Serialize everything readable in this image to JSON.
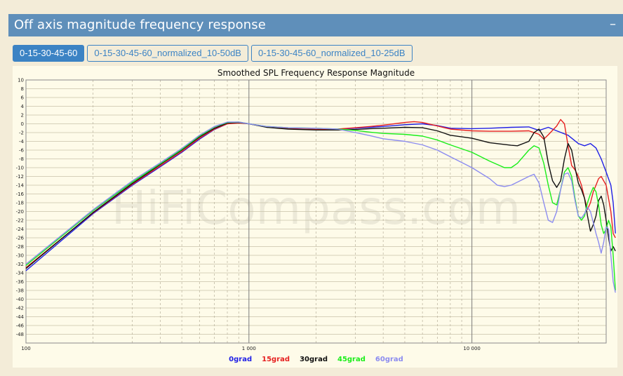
{
  "header": {
    "title": "Off axis magnitude frequency response",
    "collapse_symbol": "–"
  },
  "tabs": [
    {
      "label": "0-15-30-45-60",
      "active": true
    },
    {
      "label": "0-15-30-45-60_normalized_10-50dB",
      "active": false
    },
    {
      "label": "0-15-30-45-60_normalized_10-25dB",
      "active": false
    }
  ],
  "colors": {
    "header_bg": "#5f8fba",
    "tab_accent": "#3c83c4",
    "plot_bg": "#fefbe9"
  },
  "chart_data": {
    "type": "line",
    "title": "Smoothed SPL Frequency Response Magnitude",
    "watermark": "HiFiCompass.com",
    "x_scale": "log",
    "xlim": [
      100,
      40000
    ],
    "ylim": [
      -50,
      10
    ],
    "x_tick_labels": [
      {
        "value": 100,
        "label": "100"
      },
      {
        "value": 1000,
        "label": "1 000"
      },
      {
        "value": 10000,
        "label": "10 000"
      }
    ],
    "y_ticks": [
      10,
      8,
      6,
      4,
      2,
      0,
      -2,
      -4,
      -6,
      -8,
      -10,
      -12,
      -14,
      -16,
      -18,
      -20,
      -22,
      -24,
      -26,
      -28,
      -30,
      -32,
      -34,
      -36,
      -38,
      -40,
      -42,
      -44,
      -46,
      -48
    ],
    "grid": true,
    "legend_position": "bottom-center",
    "series": [
      {
        "name": "0grad",
        "color": "#1f1fe6",
        "points": [
          [
            100,
            -33.5
          ],
          [
            200,
            -20.5
          ],
          [
            300,
            -14
          ],
          [
            400,
            -9.8
          ],
          [
            500,
            -6.5
          ],
          [
            600,
            -3.5
          ],
          [
            700,
            -1.3
          ],
          [
            800,
            0
          ],
          [
            900,
            0.3
          ],
          [
            1000,
            0
          ],
          [
            1200,
            -0.7
          ],
          [
            1500,
            -1.1
          ],
          [
            2000,
            -1.3
          ],
          [
            2500,
            -1.2
          ],
          [
            3000,
            -1
          ],
          [
            3500,
            -0.8
          ],
          [
            4000,
            -0.6
          ],
          [
            5000,
            -0.2
          ],
          [
            6000,
            0
          ],
          [
            7000,
            -0.4
          ],
          [
            8000,
            -1
          ],
          [
            10000,
            -1.1
          ],
          [
            12000,
            -1
          ],
          [
            15000,
            -0.8
          ],
          [
            18000,
            -0.7
          ],
          [
            20000,
            -1.5
          ],
          [
            22000,
            -0.8
          ],
          [
            24000,
            -1.6
          ],
          [
            27000,
            -2.6
          ],
          [
            30000,
            -4.5
          ],
          [
            32000,
            -5
          ],
          [
            34000,
            -4.5
          ],
          [
            36000,
            -5.5
          ],
          [
            38000,
            -8
          ],
          [
            40000,
            -11
          ],
          [
            42000,
            -14
          ],
          [
            43000,
            -18
          ],
          [
            44000,
            -25
          ]
        ]
      },
      {
        "name": "15grad",
        "color": "#e62020",
        "points": [
          [
            100,
            -32.8
          ],
          [
            200,
            -20.3
          ],
          [
            300,
            -13.8
          ],
          [
            400,
            -9.6
          ],
          [
            500,
            -6.3
          ],
          [
            600,
            -3.3
          ],
          [
            700,
            -1.2
          ],
          [
            800,
            0
          ],
          [
            900,
            0.2
          ],
          [
            1000,
            0
          ],
          [
            1200,
            -0.7
          ],
          [
            1500,
            -1.1
          ],
          [
            2000,
            -1.3
          ],
          [
            2500,
            -1.2
          ],
          [
            3000,
            -0.9
          ],
          [
            3500,
            -0.6
          ],
          [
            4000,
            -0.3
          ],
          [
            5000,
            0.3
          ],
          [
            5500,
            0.5
          ],
          [
            6000,
            0.3
          ],
          [
            7000,
            -0.5
          ],
          [
            8000,
            -1.2
          ],
          [
            10000,
            -1.6
          ],
          [
            12000,
            -1.7
          ],
          [
            15000,
            -1.7
          ],
          [
            18000,
            -1.6
          ],
          [
            20000,
            -2.4
          ],
          [
            21000,
            -3.5
          ],
          [
            22000,
            -2.5
          ],
          [
            24000,
            -0.5
          ],
          [
            25000,
            1
          ],
          [
            26000,
            0
          ],
          [
            27000,
            -5
          ],
          [
            28000,
            -9.5
          ],
          [
            29000,
            -10.5
          ],
          [
            30000,
            -12
          ],
          [
            31000,
            -14
          ],
          [
            32000,
            -17
          ],
          [
            33000,
            -19.5
          ],
          [
            34000,
            -18
          ],
          [
            35000,
            -15.5
          ],
          [
            36000,
            -14
          ],
          [
            37000,
            -12.5
          ],
          [
            38000,
            -12
          ],
          [
            40000,
            -14
          ],
          [
            42000,
            -20
          ],
          [
            43000,
            -25
          ],
          [
            44000,
            -26
          ]
        ]
      },
      {
        "name": "30grad",
        "color": "#111111",
        "points": [
          [
            100,
            -33
          ],
          [
            200,
            -20.2
          ],
          [
            300,
            -13.6
          ],
          [
            400,
            -9.3
          ],
          [
            500,
            -6
          ],
          [
            600,
            -3
          ],
          [
            700,
            -1
          ],
          [
            800,
            0.2
          ],
          [
            900,
            0.3
          ],
          [
            1000,
            0
          ],
          [
            1200,
            -0.8
          ],
          [
            1500,
            -1.2
          ],
          [
            2000,
            -1.4
          ],
          [
            2500,
            -1.4
          ],
          [
            3000,
            -1.3
          ],
          [
            3500,
            -1.1
          ],
          [
            4000,
            -1
          ],
          [
            5000,
            -0.8
          ],
          [
            6000,
            -0.9
          ],
          [
            7000,
            -1.6
          ],
          [
            8000,
            -2.6
          ],
          [
            10000,
            -3.3
          ],
          [
            12000,
            -4.3
          ],
          [
            15000,
            -4.9
          ],
          [
            16000,
            -5
          ],
          [
            18000,
            -4
          ],
          [
            19000,
            -2
          ],
          [
            20000,
            -1.2
          ],
          [
            21000,
            -3
          ],
          [
            22000,
            -9
          ],
          [
            23000,
            -13
          ],
          [
            24000,
            -14.5
          ],
          [
            25000,
            -13
          ],
          [
            26000,
            -8
          ],
          [
            27000,
            -4.5
          ],
          [
            28000,
            -6
          ],
          [
            29000,
            -10
          ],
          [
            30000,
            -13.5
          ],
          [
            31000,
            -15
          ],
          [
            32000,
            -17
          ],
          [
            33000,
            -21
          ],
          [
            34000,
            -24.5
          ],
          [
            35000,
            -23
          ],
          [
            36000,
            -21
          ],
          [
            37000,
            -17.5
          ],
          [
            38000,
            -16.5
          ],
          [
            39000,
            -18.5
          ],
          [
            40000,
            -22
          ],
          [
            41000,
            -26
          ],
          [
            42000,
            -29
          ],
          [
            43000,
            -28
          ],
          [
            44000,
            -29
          ]
        ]
      },
      {
        "name": "45grad",
        "color": "#19ee19",
        "points": [
          [
            100,
            -32.3
          ],
          [
            200,
            -19.8
          ],
          [
            300,
            -13.3
          ],
          [
            400,
            -9.1
          ],
          [
            500,
            -5.8
          ],
          [
            600,
            -2.8
          ],
          [
            700,
            -0.7
          ],
          [
            800,
            0.3
          ],
          [
            900,
            0.4
          ],
          [
            1000,
            0
          ],
          [
            1200,
            -0.6
          ],
          [
            1500,
            -0.9
          ],
          [
            2000,
            -1
          ],
          [
            2500,
            -1.2
          ],
          [
            3000,
            -1.5
          ],
          [
            3500,
            -1.9
          ],
          [
            4000,
            -2.2
          ],
          [
            5000,
            -2.4
          ],
          [
            6000,
            -2.8
          ],
          [
            7000,
            -3.7
          ],
          [
            8000,
            -4.8
          ],
          [
            10000,
            -6.5
          ],
          [
            12000,
            -8.5
          ],
          [
            14000,
            -10
          ],
          [
            15000,
            -10
          ],
          [
            16000,
            -9
          ],
          [
            18000,
            -6
          ],
          [
            19000,
            -5
          ],
          [
            20000,
            -5.5
          ],
          [
            21000,
            -9
          ],
          [
            22000,
            -14
          ],
          [
            23000,
            -18
          ],
          [
            24000,
            -18.5
          ],
          [
            25000,
            -15
          ],
          [
            26000,
            -11
          ],
          [
            27000,
            -10
          ],
          [
            28000,
            -12
          ],
          [
            29000,
            -17
          ],
          [
            30000,
            -21
          ],
          [
            31000,
            -22
          ],
          [
            32000,
            -21
          ],
          [
            33000,
            -18
          ],
          [
            34000,
            -16
          ],
          [
            35000,
            -14.5
          ],
          [
            36000,
            -15.5
          ],
          [
            37000,
            -18.5
          ],
          [
            38000,
            -23
          ],
          [
            39000,
            -25
          ],
          [
            40000,
            -24
          ],
          [
            41000,
            -22
          ],
          [
            42000,
            -23.5
          ],
          [
            43000,
            -30
          ],
          [
            44000,
            -38
          ]
        ]
      },
      {
        "name": "60grad",
        "color": "#8c8cf0",
        "points": [
          [
            100,
            -32
          ],
          [
            200,
            -19.6
          ],
          [
            300,
            -13
          ],
          [
            400,
            -8.9
          ],
          [
            500,
            -5.6
          ],
          [
            600,
            -2.6
          ],
          [
            700,
            -0.6
          ],
          [
            800,
            0.4
          ],
          [
            900,
            0.4
          ],
          [
            1000,
            0
          ],
          [
            1200,
            -0.6
          ],
          [
            1500,
            -0.9
          ],
          [
            2000,
            -1
          ],
          [
            2500,
            -1.2
          ],
          [
            3000,
            -2
          ],
          [
            3500,
            -2.7
          ],
          [
            4000,
            -3.4
          ],
          [
            5000,
            -4
          ],
          [
            6000,
            -4.8
          ],
          [
            7000,
            -6
          ],
          [
            8000,
            -7.5
          ],
          [
            10000,
            -10
          ],
          [
            12000,
            -12.5
          ],
          [
            13000,
            -14
          ],
          [
            14000,
            -14.3
          ],
          [
            15000,
            -14
          ],
          [
            16000,
            -13.3
          ],
          [
            18000,
            -12
          ],
          [
            19000,
            -11.5
          ],
          [
            20000,
            -13.5
          ],
          [
            21000,
            -18
          ],
          [
            22000,
            -22
          ],
          [
            23000,
            -22.5
          ],
          [
            24000,
            -20
          ],
          [
            25000,
            -15
          ],
          [
            26000,
            -11.5
          ],
          [
            27000,
            -11.2
          ],
          [
            28000,
            -13
          ],
          [
            29000,
            -17.5
          ],
          [
            30000,
            -21
          ],
          [
            31000,
            -21.5
          ],
          [
            32000,
            -20.5
          ],
          [
            33000,
            -19
          ],
          [
            34000,
            -20
          ],
          [
            35000,
            -22.5
          ],
          [
            36000,
            -25
          ],
          [
            37000,
            -27
          ],
          [
            38000,
            -29.5
          ],
          [
            39000,
            -27
          ],
          [
            40000,
            -23.5
          ],
          [
            41000,
            -24
          ],
          [
            42000,
            -30
          ],
          [
            43000,
            -36
          ],
          [
            44000,
            -38.5
          ]
        ]
      }
    ]
  }
}
